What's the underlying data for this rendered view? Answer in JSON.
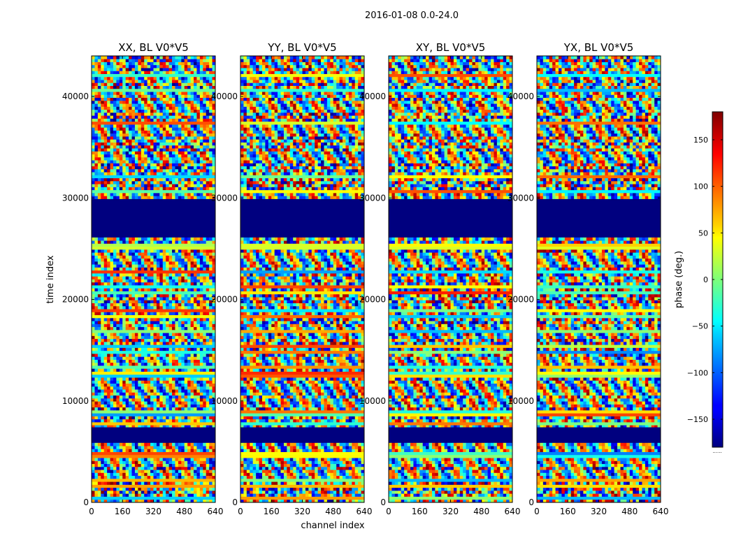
{
  "figure": {
    "suptitle": "2016-01-08 0.0-24.0"
  },
  "chart_data": {
    "type": "heatmap",
    "xlabel": "channel index",
    "ylabel": "time index",
    "xlim": [
      0,
      640
    ],
    "ylim": [
      0,
      44000
    ],
    "xticks": [
      0,
      160,
      320,
      480,
      640
    ],
    "yticks": [
      0,
      10000,
      20000,
      30000,
      40000
    ],
    "panels": [
      {
        "title": "XX, BL V0*V5",
        "pol": "XX",
        "baseline": "V0*V5"
      },
      {
        "title": "YY, BL V0*V5",
        "pol": "YY",
        "baseline": "V0*V5"
      },
      {
        "title": "XY, BL V0*V5",
        "pol": "XY",
        "baseline": "V0*V5"
      },
      {
        "title": "YX, BL V0*V5",
        "pol": "YX",
        "baseline": "V0*V5"
      }
    ],
    "flagged_time_ranges": [
      [
        6000,
        7400
      ],
      [
        26200,
        29800
      ]
    ],
    "colorbar": {
      "label": "phase (deg.)",
      "range": [
        -180,
        180
      ],
      "ticks": [
        -150,
        -100,
        -50,
        0,
        50,
        100,
        150
      ],
      "colormap": "jet",
      "offset_text": "......"
    }
  }
}
